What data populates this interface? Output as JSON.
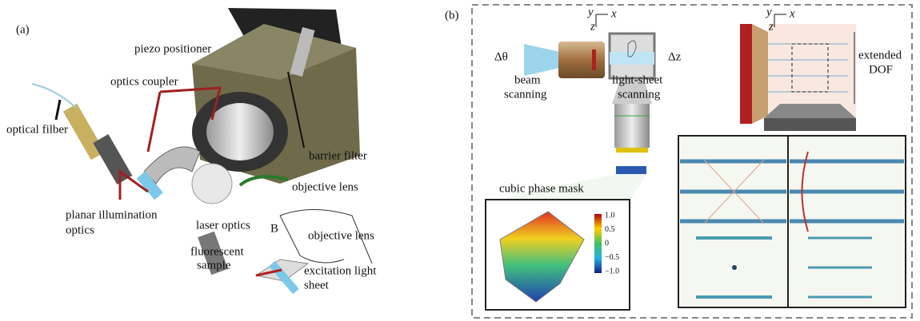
{
  "panel_a": {
    "label": "(a)",
    "piezo_positioner": "piezo positioner",
    "optics_coupler": "optics coupler",
    "optical_fiber": "optical filber",
    "barrier_filter": "barrier filter",
    "objective_lens": "objective lens",
    "planar_illumination_optics": [
      "planar illumination",
      "optics"
    ],
    "laser_optics": "laser optics",
    "inset_label": "B",
    "inset_objective_lens": "objective lens",
    "fluorescent_sample": [
      "fluorescent",
      "sample"
    ],
    "excitation_light_sheet": [
      "excitation light",
      "sheet"
    ]
  },
  "panel_b": {
    "label": "(b)",
    "axes_left": {
      "y": "y",
      "x": "x",
      "z": "z"
    },
    "axes_right": {
      "y": "y",
      "x": "x",
      "z": "z"
    },
    "delta_theta": "Δθ",
    "beam_scanning": [
      "beam",
      "scanning"
    ],
    "light_sheet_scanning": [
      "light-sheet",
      "scanning"
    ],
    "delta_z": "Δz",
    "extended_dof": [
      "extended",
      "DOF"
    ],
    "cubic_phase_mask": "cubic phase mask",
    "colorbar_ticks": [
      "1.0",
      "0.5",
      "0",
      "−0.5",
      "−1.0"
    ]
  }
}
